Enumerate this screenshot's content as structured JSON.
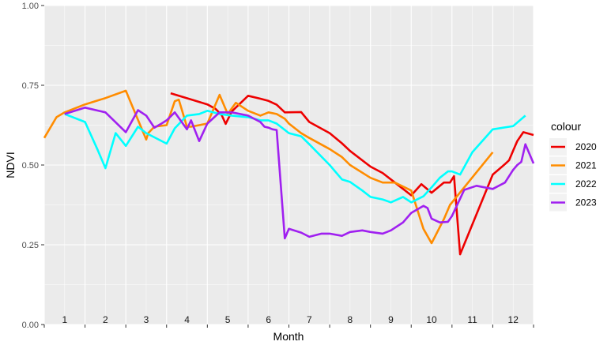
{
  "chart_data": {
    "type": "line",
    "xlabel": "Month",
    "ylabel": "NDVI",
    "ylim": [
      0,
      1
    ],
    "xlim": [
      0,
      12
    ],
    "y_ticks": [
      "0.00",
      "0.25",
      "0.50",
      "0.75",
      "1.00"
    ],
    "y_tick_values": [
      0,
      0.25,
      0.5,
      0.75,
      1.0
    ],
    "month_labels": [
      "1",
      "2",
      "3",
      "4",
      "5",
      "6",
      "7",
      "8",
      "9",
      "10",
      "11",
      "12"
    ],
    "grid": true,
    "legend": {
      "title": "colour",
      "position": "right"
    },
    "series": [
      {
        "name": "2020",
        "color": "#ee0000",
        "x": [
          3.1,
          4.0,
          4.2,
          4.35,
          4.45,
          4.6,
          5.0,
          5.3,
          5.5,
          5.7,
          5.9,
          6.3,
          6.5,
          7.0,
          7.3,
          7.5,
          8.0,
          8.3,
          8.6,
          9.0,
          9.25,
          9.5,
          9.8,
          9.95,
          10.05,
          10.2,
          11.0,
          11.3,
          11.4,
          11.5,
          11.6,
          11.75,
          12.0
        ],
        "y": [
          0.725,
          0.69,
          0.676,
          0.657,
          0.629,
          0.668,
          0.717,
          0.708,
          0.701,
          0.689,
          0.665,
          0.666,
          0.635,
          0.6,
          0.568,
          0.544,
          0.495,
          0.475,
          0.445,
          0.405,
          0.44,
          0.413,
          0.445,
          0.445,
          0.465,
          0.22,
          0.47,
          0.503,
          0.515,
          0.545,
          0.575,
          0.603,
          0.594
        ]
      },
      {
        "name": "2021",
        "color": "#ff8c00",
        "x": [
          0.0,
          0.3,
          0.5,
          1.0,
          1.5,
          2.0,
          2.5,
          2.55,
          2.7,
          3.0,
          3.2,
          3.3,
          3.5,
          3.6,
          4.0,
          4.3,
          4.5,
          4.7,
          5.0,
          5.3,
          5.5,
          5.7,
          5.9,
          6.0,
          6.3,
          6.5,
          7.0,
          7.3,
          7.5,
          8.0,
          8.3,
          8.6,
          9.0,
          9.3,
          9.5,
          9.6,
          9.8,
          9.95,
          11.0
        ],
        "y": [
          0.585,
          0.65,
          0.665,
          0.69,
          0.71,
          0.733,
          0.58,
          0.6,
          0.62,
          0.625,
          0.7,
          0.705,
          0.62,
          0.62,
          0.63,
          0.72,
          0.66,
          0.695,
          0.67,
          0.655,
          0.665,
          0.66,
          0.645,
          0.63,
          0.6,
          0.585,
          0.55,
          0.525,
          0.5,
          0.46,
          0.445,
          0.445,
          0.42,
          0.3,
          0.255,
          0.28,
          0.33,
          0.375,
          0.54
        ]
      },
      {
        "name": "2022",
        "color": "#00ffff",
        "x": [
          0.5,
          1.0,
          1.3,
          1.5,
          1.75,
          2.0,
          2.3,
          2.5,
          3.0,
          3.2,
          3.5,
          3.8,
          4.0,
          4.3,
          4.6,
          5.0,
          5.3,
          5.5,
          5.7,
          6.0,
          6.3,
          6.5,
          7.0,
          7.3,
          7.5,
          7.8,
          8.0,
          8.3,
          8.5,
          8.8,
          9.0,
          9.3,
          9.5,
          9.7,
          9.9,
          10.0,
          10.2,
          10.5,
          11.0,
          11.5,
          11.8
        ],
        "y": [
          0.66,
          0.635,
          0.55,
          0.49,
          0.6,
          0.56,
          0.62,
          0.6,
          0.567,
          0.615,
          0.655,
          0.66,
          0.67,
          0.66,
          0.655,
          0.65,
          0.64,
          0.64,
          0.63,
          0.6,
          0.59,
          0.565,
          0.5,
          0.455,
          0.447,
          0.42,
          0.4,
          0.392,
          0.383,
          0.4,
          0.383,
          0.402,
          0.43,
          0.46,
          0.48,
          0.48,
          0.47,
          0.54,
          0.612,
          0.622,
          0.655
        ]
      },
      {
        "name": "2023",
        "color": "#a020f0",
        "x": [
          0.5,
          1.0,
          1.5,
          2.0,
          2.3,
          2.5,
          2.7,
          2.85,
          3.0,
          3.2,
          3.5,
          3.6,
          3.8,
          4.0,
          4.3,
          4.6,
          5.0,
          5.3,
          5.4,
          5.5,
          5.6,
          5.7,
          5.9,
          6.0,
          6.3,
          6.5,
          6.8,
          7.0,
          7.3,
          7.5,
          7.8,
          8.0,
          8.3,
          8.5,
          8.8,
          9.0,
          9.3,
          9.4,
          9.5,
          9.7,
          9.9,
          10.0,
          10.3,
          10.6,
          11.0,
          11.3,
          11.5,
          11.6,
          11.7,
          11.8,
          12.0
        ],
        "y": [
          0.66,
          0.68,
          0.665,
          0.603,
          0.672,
          0.655,
          0.617,
          0.628,
          0.64,
          0.665,
          0.612,
          0.64,
          0.575,
          0.63,
          0.665,
          0.665,
          0.655,
          0.635,
          0.62,
          0.617,
          0.612,
          0.61,
          0.27,
          0.3,
          0.288,
          0.275,
          0.285,
          0.285,
          0.278,
          0.29,
          0.295,
          0.29,
          0.285,
          0.295,
          0.32,
          0.35,
          0.372,
          0.365,
          0.332,
          0.32,
          0.322,
          0.34,
          0.422,
          0.435,
          0.425,
          0.445,
          0.485,
          0.5,
          0.51,
          0.565,
          0.505
        ]
      }
    ]
  },
  "chart_layout_note": ""
}
